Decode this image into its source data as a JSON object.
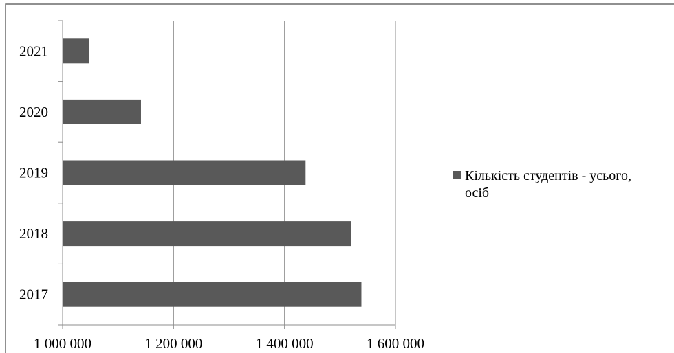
{
  "chart_data": {
    "type": "bar",
    "orientation": "horizontal",
    "title": "",
    "xlabel": "",
    "ylabel": "",
    "categories": [
      "2017",
      "2018",
      "2019",
      "2020",
      "2021"
    ],
    "series": [
      {
        "name": "Кількість студентів - усього, осіб",
        "values": [
          1538600,
          1520000,
          1438000,
          1141300,
          1048000
        ],
        "color": "#595959"
      }
    ],
    "xlim": [
      1000000,
      1600000
    ],
    "x_ticks": [
      {
        "value": 1000000,
        "label": "1 000 000"
      },
      {
        "value": 1200000,
        "label": "1 200 000"
      },
      {
        "value": 1400000,
        "label": "1 400 000"
      },
      {
        "value": 1600000,
        "label": "1 600 000"
      }
    ],
    "grid": {
      "vertical": true,
      "horizontal": false
    },
    "legend": {
      "position": "right",
      "lines": [
        "Кількість студентів - усього,",
        "осіб"
      ]
    }
  }
}
